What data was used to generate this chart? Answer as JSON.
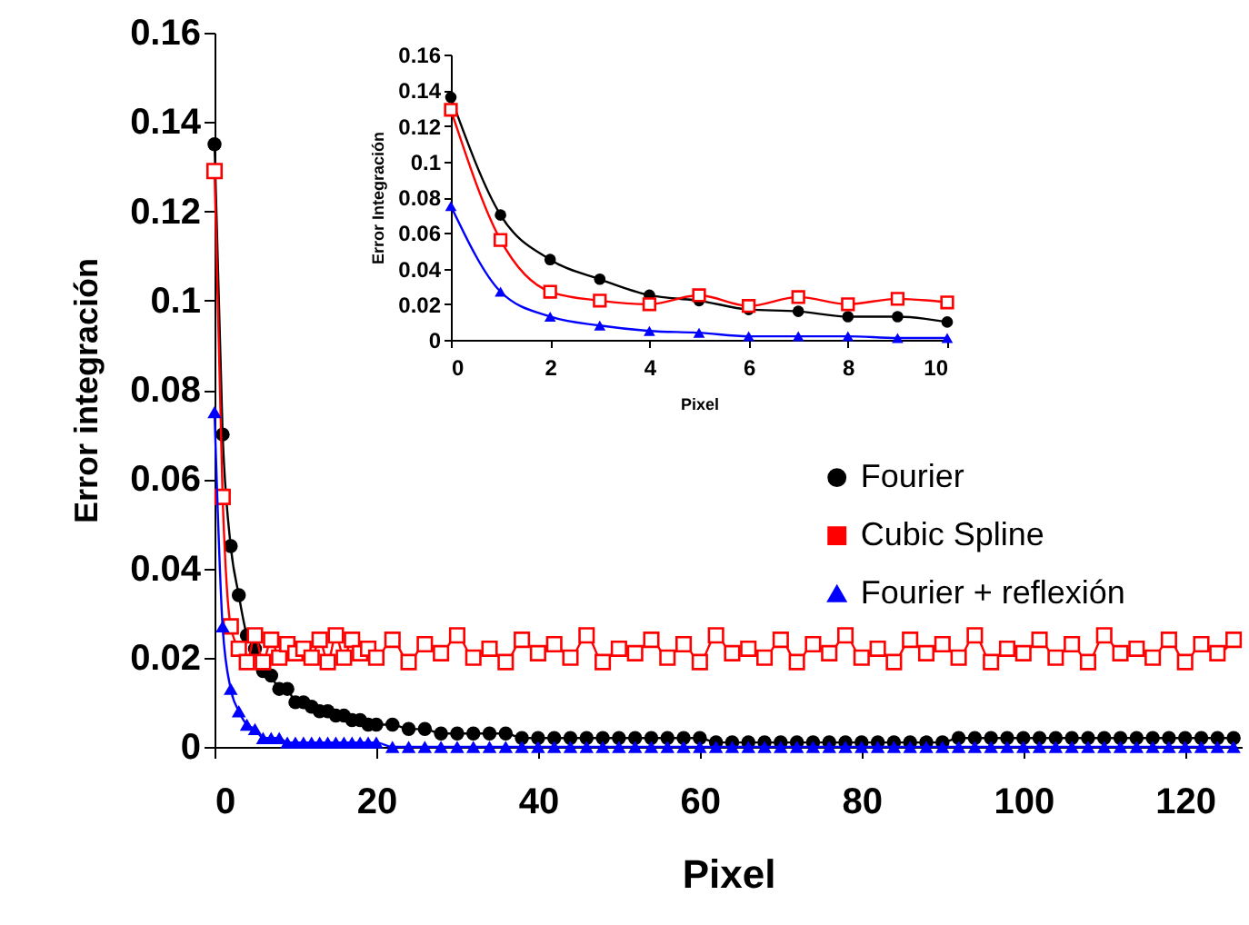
{
  "chart_data": [
    {
      "type": "line",
      "xlabel": "Pixel",
      "ylabel": "Error integración",
      "xlim": [
        0,
        127
      ],
      "xticks": [
        0,
        20,
        40,
        60,
        80,
        100,
        120
      ],
      "ylim": [
        0,
        0.16
      ],
      "yticks": [
        0,
        0.02,
        0.04,
        0.06,
        0.08,
        0.1,
        0.12,
        0.14,
        0.16
      ],
      "grid": false,
      "legend": "right",
      "line_style": "solid",
      "x": [
        0,
        1,
        2,
        3,
        4,
        5,
        6,
        7,
        8,
        9,
        10,
        11,
        12,
        13,
        14,
        15,
        16,
        17,
        18,
        19,
        20,
        22,
        24,
        26,
        28,
        30,
        32,
        34,
        36,
        38,
        40,
        42,
        44,
        46,
        48,
        50,
        52,
        54,
        56,
        58,
        60,
        62,
        64,
        66,
        68,
        70,
        72,
        74,
        76,
        78,
        80,
        82,
        84,
        86,
        88,
        90,
        92,
        94,
        96,
        98,
        100,
        102,
        104,
        106,
        108,
        110,
        112,
        114,
        116,
        118,
        120,
        122,
        124,
        126
      ],
      "series": [
        {
          "name": "Fourier",
          "color": "#000000",
          "marker": "circle",
          "values": [
            0.135,
            0.07,
            0.045,
            0.034,
            0.025,
            0.022,
            0.017,
            0.016,
            0.013,
            0.013,
            0.01,
            0.01,
            0.009,
            0.008,
            0.008,
            0.007,
            0.007,
            0.006,
            0.006,
            0.005,
            0.005,
            0.005,
            0.004,
            0.004,
            0.003,
            0.003,
            0.003,
            0.003,
            0.003,
            0.002,
            0.002,
            0.002,
            0.002,
            0.002,
            0.002,
            0.002,
            0.002,
            0.002,
            0.002,
            0.002,
            0.002,
            0.001,
            0.001,
            0.001,
            0.001,
            0.001,
            0.001,
            0.001,
            0.001,
            0.001,
            0.001,
            0.001,
            0.001,
            0.001,
            0.001,
            0.001,
            0.002,
            0.002,
            0.002,
            0.002,
            0.002,
            0.002,
            0.002,
            0.002,
            0.002,
            0.002,
            0.002,
            0.002,
            0.002,
            0.002,
            0.002,
            0.002,
            0.002,
            0.002
          ]
        },
        {
          "name": "Cubic Spline",
          "color": "#ff0000",
          "marker": "square",
          "values": [
            0.129,
            0.056,
            0.027,
            0.022,
            0.019,
            0.025,
            0.019,
            0.024,
            0.02,
            0.023,
            0.021,
            0.022,
            0.02,
            0.024,
            0.019,
            0.025,
            0.02,
            0.024,
            0.021,
            0.022,
            0.02,
            0.024,
            0.019,
            0.023,
            0.021,
            0.025,
            0.02,
            0.022,
            0.019,
            0.024,
            0.021,
            0.023,
            0.02,
            0.025,
            0.019,
            0.022,
            0.021,
            0.024,
            0.02,
            0.023,
            0.019,
            0.025,
            0.021,
            0.022,
            0.02,
            0.024,
            0.019,
            0.023,
            0.021,
            0.025,
            0.02,
            0.022,
            0.019,
            0.024,
            0.021,
            0.023,
            0.02,
            0.025,
            0.019,
            0.022,
            0.021,
            0.024,
            0.02,
            0.023,
            0.019,
            0.025,
            0.021,
            0.022,
            0.02,
            0.024,
            0.019,
            0.023,
            0.021,
            0.024
          ]
        },
        {
          "name": "Fourier + reflexión",
          "color": "#0000ff",
          "marker": "triangle",
          "values": [
            0.075,
            0.027,
            0.013,
            0.008,
            0.005,
            0.004,
            0.002,
            0.002,
            0.002,
            0.001,
            0.001,
            0.001,
            0.001,
            0.001,
            0.001,
            0.001,
            0.001,
            0.001,
            0.001,
            0.001,
            0.001,
            0,
            0,
            0,
            0,
            0,
            0,
            0,
            0,
            0,
            0,
            0,
            0,
            0,
            0,
            0,
            0,
            0,
            0,
            0,
            0,
            0,
            0,
            0,
            0,
            0,
            0,
            0,
            0,
            0,
            0,
            0,
            0,
            0,
            0,
            0,
            0,
            0,
            0,
            0,
            0,
            0,
            0,
            0,
            0,
            0,
            0,
            0,
            0,
            0,
            0,
            0,
            0,
            0
          ]
        }
      ]
    },
    {
      "type": "line",
      "xlabel": "Pixel",
      "ylabel": "Error Integración",
      "xlim": [
        0,
        10
      ],
      "xticks": [
        0,
        2,
        4,
        6,
        8,
        10
      ],
      "ylim": [
        0,
        0.16
      ],
      "yticks": [
        0,
        0.02,
        0.04,
        0.06,
        0.08,
        0.1,
        0.12,
        0.14,
        0.16
      ],
      "grid": false,
      "legend": false,
      "line_style": "solid",
      "x": [
        0,
        1,
        2,
        3,
        4,
        5,
        6,
        7,
        8,
        9,
        10
      ],
      "series": [
        {
          "color": "#000000",
          "marker": "circle",
          "values": [
            0.136,
            0.07,
            0.045,
            0.034,
            0.025,
            0.022,
            0.017,
            0.016,
            0.013,
            0.013,
            0.01
          ]
        },
        {
          "color": "#ff0000",
          "marker": "square",
          "values": [
            0.129,
            0.056,
            0.027,
            0.022,
            0.02,
            0.025,
            0.019,
            0.024,
            0.02,
            0.023,
            0.021
          ]
        },
        {
          "color": "#0000ff",
          "marker": "triangle",
          "values": [
            0.075,
            0.027,
            0.013,
            0.008,
            0.005,
            0.004,
            0.002,
            0.002,
            0.002,
            0.001,
            0.001
          ]
        }
      ]
    }
  ]
}
